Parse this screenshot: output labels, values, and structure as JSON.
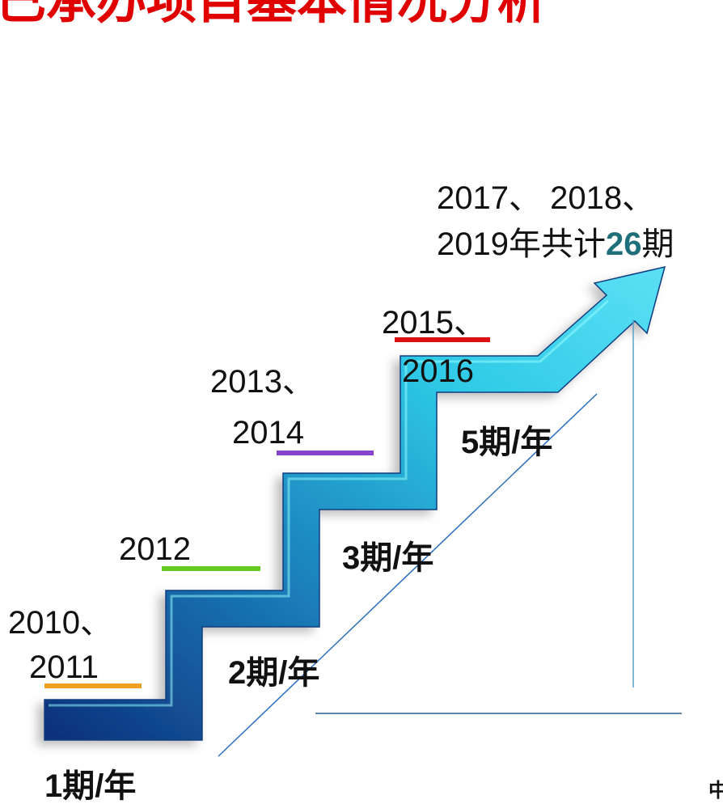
{
  "title": "已承办项目基本情况分析",
  "year_labels": [
    {
      "lines": [
        "2010、",
        "2011"
      ]
    },
    {
      "lines": [
        "2012"
      ]
    },
    {
      "lines": [
        "2013、",
        "2014"
      ]
    },
    {
      "lines": [
        "2015、",
        "2016"
      ]
    }
  ],
  "rates": [
    "1期/年",
    "2期/年",
    "3期/年",
    "5期/年"
  ],
  "final_label": {
    "line1": "2017、 2018、",
    "line2_text": "2019年共计",
    "total": "26",
    "unit": "期"
  },
  "corner_text": "中"
}
